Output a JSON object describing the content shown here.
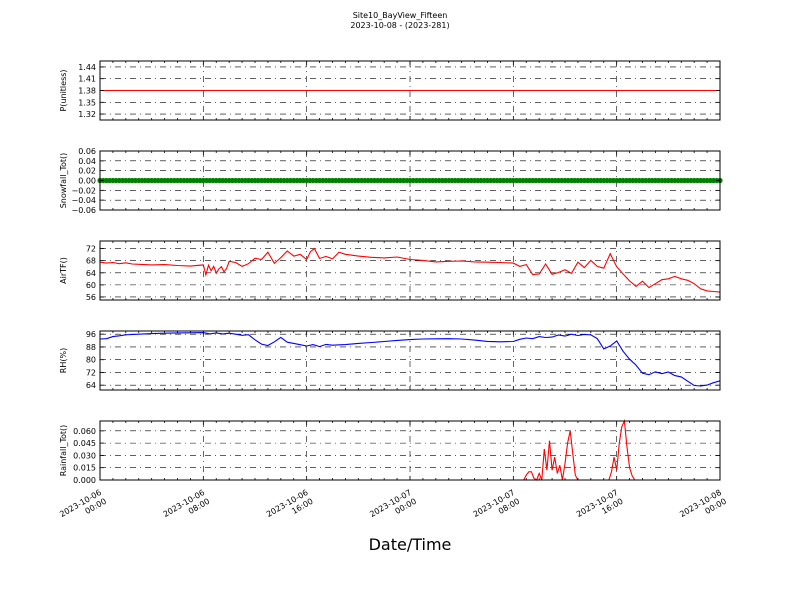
{
  "figure": {
    "title": "Site10_BayView_Fifteen",
    "subtitle": "2023-10-08 - (2023-281)",
    "xlabel": "Date/Time",
    "x_ticks": [
      {
        "t": 0,
        "line1": "2023-10-06",
        "line2": "00:00"
      },
      {
        "t": 8,
        "line1": "2023-10-06",
        "line2": "08:00"
      },
      {
        "t": 16,
        "line1": "2023-10-06",
        "line2": "16:00"
      },
      {
        "t": 24,
        "line1": "2023-10-07",
        "line2": "00:00"
      },
      {
        "t": 32,
        "line1": "2023-10-07",
        "line2": "08:00"
      },
      {
        "t": 40,
        "line1": "2023-10-07",
        "line2": "16:00"
      },
      {
        "t": 48,
        "line1": "2023-10-08",
        "line2": "00:00"
      }
    ],
    "x_range_hours": [
      0,
      48
    ]
  },
  "chart_data": [
    {
      "type": "line",
      "ylabel": "P(unitless)",
      "color": "#ff0000",
      "ylim": [
        1.305,
        1.455
      ],
      "yticks": [
        1.32,
        1.35,
        1.38,
        1.41,
        1.44
      ],
      "yticklabels": [
        "1.32",
        "1.35",
        "1.38",
        "1.41",
        "1.44"
      ],
      "grid": true,
      "x": [
        0,
        48
      ],
      "y": [
        1.38,
        1.38
      ]
    },
    {
      "type": "line",
      "ylabel": "Snowfall_Tot()",
      "color": "#008000",
      "marker": true,
      "ylim": [
        -0.06,
        0.06
      ],
      "yticks": [
        -0.06,
        -0.04,
        -0.02,
        0.0,
        0.02,
        0.04,
        0.06
      ],
      "yticklabels": [
        "−0.06",
        "−0.04",
        "−0.02",
        "0.00",
        "0.02",
        "0.04",
        "0.06"
      ],
      "grid": true,
      "x": [
        0,
        48
      ],
      "y": [
        0.0,
        0.0
      ]
    },
    {
      "type": "line",
      "ylabel": "AirTF()",
      "color": "#ff0000",
      "ylim": [
        55,
        74.5
      ],
      "yticks": [
        56,
        60,
        64,
        68,
        72
      ],
      "yticklabels": [
        "56",
        "60",
        "64",
        "68",
        "72"
      ],
      "grid": true,
      "x": [
        0,
        0.5,
        1,
        1.5,
        2,
        2.5,
        3,
        4,
        5,
        6,
        7,
        8,
        8.2,
        8.4,
        8.6,
        8.8,
        9,
        9.2,
        9.4,
        9.6,
        9.8,
        10,
        10.5,
        11,
        11.5,
        12,
        12.5,
        13,
        13.5,
        14,
        14.5,
        15,
        15.5,
        16,
        16.3,
        16.6,
        17,
        17.5,
        18,
        18.5,
        19,
        19.5,
        20,
        21,
        22,
        23,
        24,
        25,
        26,
        27,
        28,
        29,
        30,
        31,
        32,
        32.5,
        33,
        33.5,
        34,
        34.5,
        35,
        35.5,
        36,
        36.5,
        37,
        37.5,
        38,
        38.5,
        39,
        39.5,
        40,
        40.5,
        41,
        41.5,
        42,
        42.5,
        43,
        43.5,
        44,
        44.5,
        45,
        45.5,
        46,
        46.5,
        47,
        47.5,
        48
      ],
      "y": [
        67.5,
        67.2,
        67.4,
        67,
        67.3,
        66.9,
        66.8,
        66.6,
        66.7,
        66.4,
        66.2,
        66.6,
        63.3,
        66.5,
        64.7,
        66.1,
        63.9,
        65.2,
        66.0,
        64.3,
        65.4,
        67.8,
        67.4,
        66.1,
        67.0,
        68.8,
        68.4,
        70.8,
        67.1,
        69.0,
        71.2,
        69.5,
        70.1,
        68.4,
        71.0,
        72.0,
        68.7,
        69.4,
        68.6,
        70.8,
        70.1,
        69.8,
        69.5,
        69.1,
        68.9,
        69.2,
        68.4,
        68.1,
        67.6,
        67.8,
        67.9,
        67.6,
        67.5,
        67.4,
        67.2,
        66.1,
        66.7,
        63.4,
        63.6,
        66.9,
        63.5,
        64.1,
        65.0,
        63.8,
        67.5,
        65.7,
        68.1,
        66.1,
        65.5,
        70.3,
        66.0,
        63.6,
        61.3,
        59.5,
        61.2,
        59.1,
        60.4,
        61.7,
        62.0,
        62.8,
        62.0,
        61.5,
        60.4,
        58.7,
        58.0,
        57.8,
        57.6
      ]
    },
    {
      "type": "line",
      "ylabel": "RH(%)",
      "color": "#0000ff",
      "ylim": [
        61,
        98
      ],
      "yticks": [
        64,
        72,
        80,
        88,
        96
      ],
      "yticklabels": [
        "64",
        "72",
        "80",
        "88",
        "96"
      ],
      "grid": true,
      "x": [
        0,
        0.5,
        1,
        1.5,
        2,
        3,
        4,
        5,
        6,
        7,
        8,
        8.5,
        9,
        9.5,
        10,
        10.5,
        11,
        11.5,
        12,
        12.5,
        13,
        13.5,
        14,
        14.5,
        15,
        15.5,
        16,
        16.5,
        17,
        17.5,
        18,
        19,
        20,
        21,
        22,
        23,
        24,
        25,
        26,
        27,
        28,
        29,
        30,
        31,
        32,
        32.5,
        33,
        33.5,
        34,
        34.5,
        35,
        35.5,
        36,
        36.5,
        37,
        37.5,
        38,
        38.5,
        39,
        39.5,
        40,
        40.5,
        41,
        41.5,
        42,
        42.5,
        43,
        43.5,
        44,
        44.5,
        45,
        45.5,
        46,
        46.5,
        47,
        47.5,
        48
      ],
      "y": [
        93,
        93.2,
        94.5,
        95,
        95.6,
        96,
        96.4,
        96.6,
        96.8,
        96.9,
        97,
        96.2,
        96.8,
        96.2,
        96.6,
        96.0,
        95.3,
        95.7,
        92.5,
        89.8,
        88.9,
        91.2,
        94.0,
        91.0,
        90.2,
        89.4,
        88.6,
        89.5,
        88.2,
        89.6,
        89.1,
        89.5,
        90.2,
        90.8,
        91.4,
        92.1,
        92.6,
        93.0,
        93.1,
        93.2,
        93.0,
        92.3,
        91.5,
        91.2,
        91.4,
        92.8,
        93.6,
        93.2,
        94.5,
        93.9,
        94.2,
        95.5,
        94.8,
        96.0,
        95.2,
        95.8,
        95.6,
        93.2,
        86.8,
        88.6,
        91.8,
        85.3,
        80.3,
        76.6,
        71.5,
        70.6,
        72.4,
        71.2,
        72.3,
        70.0,
        69.2,
        66.5,
        63.8,
        63.5,
        64.1,
        65.6,
        66.8
      ]
    },
    {
      "type": "line",
      "ylabel": "Rainfall_Tot()",
      "color": "#ff0000",
      "ylim": [
        0,
        0.072
      ],
      "yticks": [
        0.0,
        0.015,
        0.03,
        0.045,
        0.06
      ],
      "yticklabels": [
        "0.000",
        "0.015",
        "0.030",
        "0.045",
        "0.060"
      ],
      "grid": true,
      "x": [
        0,
        32.8,
        33.0,
        33.2,
        33.4,
        33.6,
        33.8,
        34.0,
        34.2,
        34.4,
        34.6,
        34.8,
        35.0,
        35.2,
        35.4,
        35.6,
        35.8,
        36.0,
        36.2,
        36.4,
        36.6,
        36.8,
        37.0,
        37.2,
        37.4,
        37.6,
        37.8,
        38.0,
        38.2,
        38.4,
        38.6,
        38.8,
        39.0,
        39.2,
        39.4,
        39.6,
        39.8,
        40.0,
        40.2,
        40.4,
        40.6,
        40.8,
        41.0,
        41.2,
        41.4,
        41.6,
        41.8,
        42.0,
        48
      ],
      "y": [
        0,
        0,
        0.006,
        0.01,
        0.01,
        0.002,
        0.0,
        0.008,
        0.0,
        0.038,
        0.012,
        0.048,
        0.012,
        0.028,
        0.008,
        0.018,
        0.0,
        0.02,
        0.045,
        0.06,
        0.032,
        0.006,
        0.0,
        0.0,
        0.0,
        0.0,
        0.0,
        0.0,
        0.0,
        0.0,
        0.0,
        0.0,
        0.0,
        0.0,
        0.0,
        0.01,
        0.028,
        0.012,
        0.045,
        0.065,
        0.072,
        0.04,
        0.015,
        0.005,
        0.0,
        0.0,
        0.0,
        0.0,
        0
      ]
    }
  ]
}
